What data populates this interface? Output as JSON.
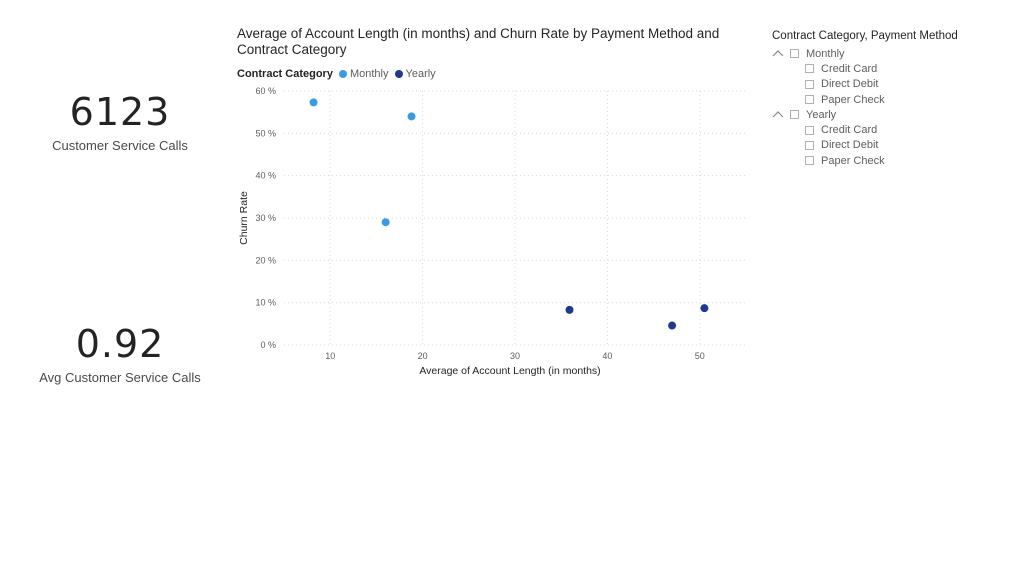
{
  "cards": {
    "calls": {
      "value": "6123",
      "label": "Customer Service Calls"
    },
    "avg": {
      "value": "0.92",
      "label": "Avg Customer Service Calls"
    }
  },
  "chart": {
    "title": "Average of Account Length (in months) and Churn Rate by Payment Method and Contract Category",
    "legend_title": "Contract Category",
    "colors": {
      "Monthly": "#3b9ae1",
      "Yearly": "#1f3a8a"
    }
  },
  "chart_data": {
    "type": "scatter",
    "title": "Average of Account Length (in months) and Churn Rate by Payment Method and Contract Category",
    "xlabel": "Average of Account Length (in months)",
    "ylabel": "Churn Rate",
    "xlim": [
      5,
      55
    ],
    "ylim": [
      0,
      60
    ],
    "x_ticks": [
      10,
      20,
      30,
      40,
      50
    ],
    "y_ticks": [
      0,
      10,
      20,
      30,
      40,
      50,
      60
    ],
    "y_tick_labels": [
      "0 %",
      "10 %",
      "20 %",
      "30 %",
      "40 %",
      "50 %",
      "60 %"
    ],
    "grid": true,
    "legend_position": "top-left",
    "series": [
      {
        "name": "Monthly",
        "points": [
          {
            "x": 8.2,
            "y": 57.3
          },
          {
            "x": 18.8,
            "y": 54.0
          },
          {
            "x": 16.0,
            "y": 29.0
          }
        ]
      },
      {
        "name": "Yearly",
        "points": [
          {
            "x": 35.9,
            "y": 8.3
          },
          {
            "x": 47.0,
            "y": 4.6
          },
          {
            "x": 50.5,
            "y": 8.7
          }
        ]
      }
    ]
  },
  "slicer": {
    "title": "Contract Category, Payment Method",
    "groups": [
      {
        "label": "Monthly",
        "items": [
          "Credit Card",
          "Direct Debit",
          "Paper Check"
        ]
      },
      {
        "label": "Yearly",
        "items": [
          "Credit Card",
          "Direct Debit",
          "Paper Check"
        ]
      }
    ]
  }
}
